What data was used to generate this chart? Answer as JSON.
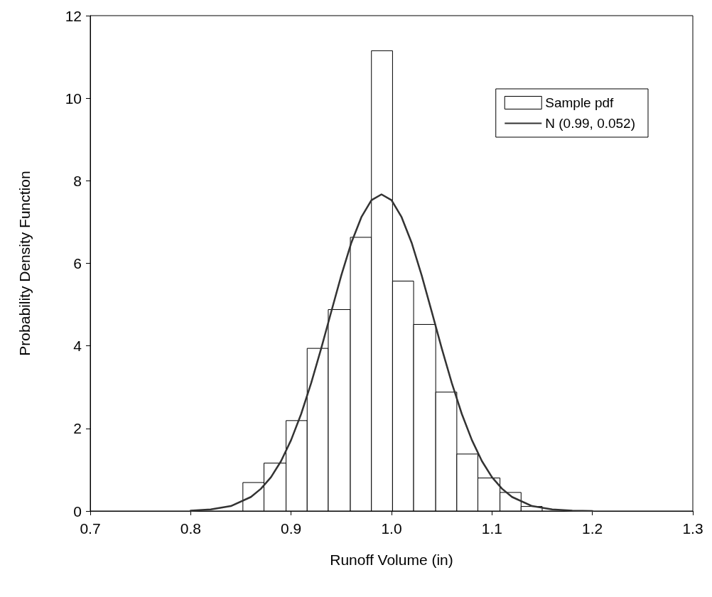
{
  "chart_data": {
    "type": "histogram",
    "xlabel": "Runoff Volume (in)",
    "ylabel": "Probability Density Function",
    "xlim": [
      0.7,
      1.3
    ],
    "xticks": [
      0.7,
      0.8,
      0.9,
      {
        "value": 1,
        "label": "1.0"
      },
      1.1,
      1.2,
      1.3
    ],
    "ylim": [
      0,
      12
    ],
    "yticks": [
      0,
      2,
      4,
      6,
      8,
      10,
      12
    ],
    "grid": false,
    "legend": "top right",
    "series": [
      {
        "name": "Sample pdf",
        "color": "#ffffff",
        "bins": [
          0.852,
          0.873,
          0.895,
          0.916,
          0.937,
          0.959,
          0.98,
          1.001,
          1.022,
          1.044,
          1.065,
          1.086,
          1.108,
          1.129,
          1.15
        ],
        "values": [
          0.69,
          1.16,
          2.19,
          3.94,
          4.88,
          6.63,
          11.15,
          5.57,
          4.52,
          2.88,
          1.38,
          0.8,
          0.45,
          0.11
        ]
      },
      {
        "type": "line",
        "name": "N (0.99, 0.052)",
        "color": "#333333",
        "marker": "none",
        "line_style": "solid",
        "x": [
          0.8,
          0.82,
          0.84,
          0.86,
          0.87,
          0.88,
          0.89,
          0.9,
          0.91,
          0.92,
          0.93,
          0.94,
          0.95,
          0.96,
          0.97,
          0.98,
          0.99,
          1.0,
          1.01,
          1.02,
          1.03,
          1.04,
          1.05,
          1.06,
          1.07,
          1.08,
          1.09,
          1.1,
          1.11,
          1.12,
          1.14,
          1.16,
          1.18,
          1.2
        ],
        "values": [
          0.01,
          0.04,
          0.12,
          0.34,
          0.54,
          0.82,
          1.21,
          1.72,
          2.35,
          3.1,
          3.94,
          4.83,
          5.71,
          6.5,
          7.12,
          7.53,
          7.67,
          7.53,
          7.12,
          6.5,
          5.71,
          4.83,
          3.94,
          3.1,
          2.35,
          1.72,
          1.21,
          0.82,
          0.54,
          0.34,
          0.12,
          0.04,
          0.01,
          0.0
        ]
      }
    ]
  }
}
